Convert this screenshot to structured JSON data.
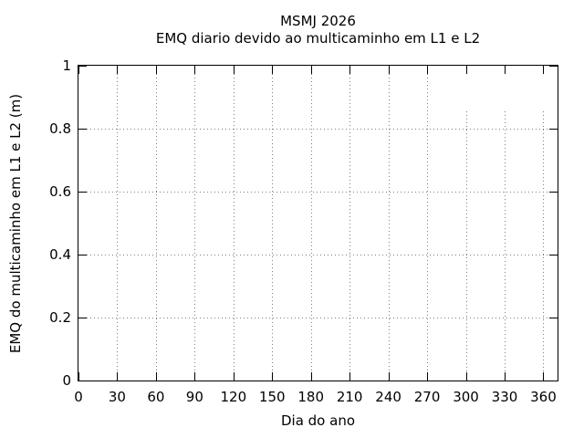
{
  "title": {
    "line1": "MSMJ 2026",
    "line2": "EMQ diario devido ao multicaminho em L1 e L2"
  },
  "axes": {
    "xlabel": "Dia do ano",
    "ylabel": "EMQ do multicaminho em L1 e L2 (m)"
  },
  "colors": {
    "axis": "#000000",
    "grid": "#7f7f7f",
    "background": "#ffffff",
    "text": "#000000"
  },
  "chart_data": {
    "type": "scatter",
    "title": "MSMJ 2026 — EMQ diario devido ao multicaminho em L1 e L2",
    "xlabel": "Dia do ano",
    "ylabel": "EMQ do multicaminho em L1 e L2 (m)",
    "xlim": [
      0,
      371
    ],
    "ylim": [
      0,
      1
    ],
    "xticks": [
      0,
      30,
      60,
      90,
      120,
      150,
      180,
      210,
      240,
      270,
      300,
      330,
      360
    ],
    "xtick_labels": [
      "0",
      "30",
      "60",
      "90",
      "120",
      "150",
      "180",
      "210",
      "240",
      "270",
      "300",
      "330",
      "360"
    ],
    "yticks": [
      0,
      0.2,
      0.4,
      0.6,
      0.8,
      1
    ],
    "ytick_labels": [
      "0",
      "0.2",
      "0.4",
      "0.6",
      "0.8",
      "1"
    ],
    "grid": true,
    "legend_position": "top-right-blank",
    "grid_gap_topright": {
      "xticks": [
        300,
        330,
        360
      ],
      "start_frac": 0.144
    },
    "series": []
  }
}
